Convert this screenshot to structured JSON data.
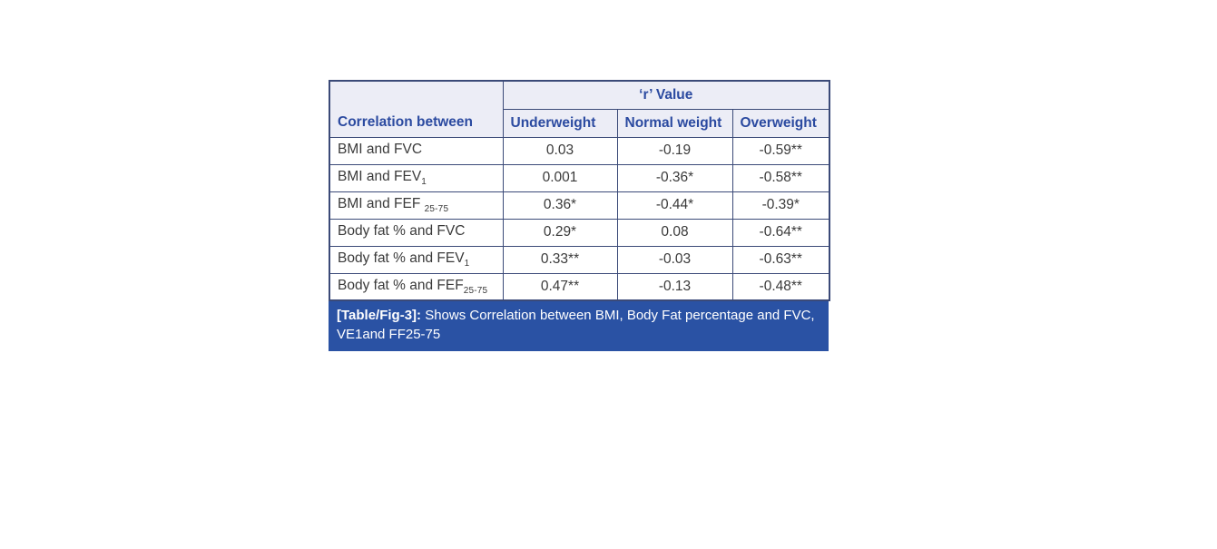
{
  "table": {
    "header": {
      "corner_label": "Correlation between",
      "group_label": "‘r’ Value",
      "columns": [
        "Underweight",
        "Normal weight",
        "Overweight"
      ]
    },
    "rows": [
      {
        "label_base": "BMI and FVC",
        "label_sub": "",
        "values": [
          "0.03",
          "-0.19",
          "-0.59**"
        ]
      },
      {
        "label_base": "BMI and FEV",
        "label_sub": "1",
        "values": [
          "0.001",
          "-0.36*",
          "-0.58**"
        ]
      },
      {
        "label_base": "BMI and FEF ",
        "label_sub": "25-75",
        "values": [
          "0.36*",
          "-0.44*",
          "-0.39*"
        ]
      },
      {
        "label_base": "Body fat % and FVC",
        "label_sub": "",
        "values": [
          "0.29*",
          "0.08",
          "-0.64**"
        ]
      },
      {
        "label_base": "Body fat % and FEV",
        "label_sub": "1",
        "values": [
          "0.33**",
          "-0.03",
          "-0.63**"
        ]
      },
      {
        "label_base": "Body fat % and FEF",
        "label_sub": "25-75",
        "values": [
          "0.47**",
          "-0.13",
          "-0.48**"
        ]
      }
    ],
    "caption": {
      "tag": "[Table/Fig-3]:",
      "text": " Shows Correlation between BMI, Body Fat percentage and FVC, VE1and FF25-75"
    }
  },
  "colors": {
    "border": "#3b4a78",
    "header_background": "#ecedf6",
    "header_text": "#2b4aa0",
    "body_text": "#3a3a3a",
    "caption_background": "#2a52a4",
    "caption_text": "#ffffff"
  }
}
